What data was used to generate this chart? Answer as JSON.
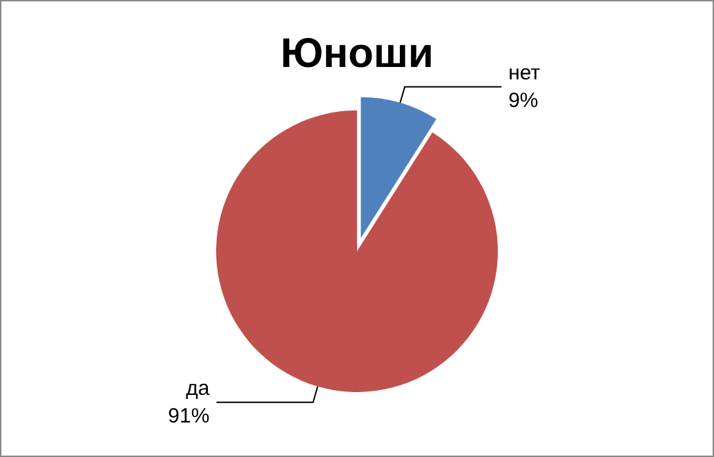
{
  "chart_data": {
    "type": "pie",
    "title": "Юноши",
    "categories": [
      "нет",
      "да"
    ],
    "values": [
      9,
      91
    ],
    "value_labels": [
      "9%",
      "91%"
    ],
    "colors": [
      "#4f81bd",
      "#c0504d"
    ],
    "legend": false
  }
}
